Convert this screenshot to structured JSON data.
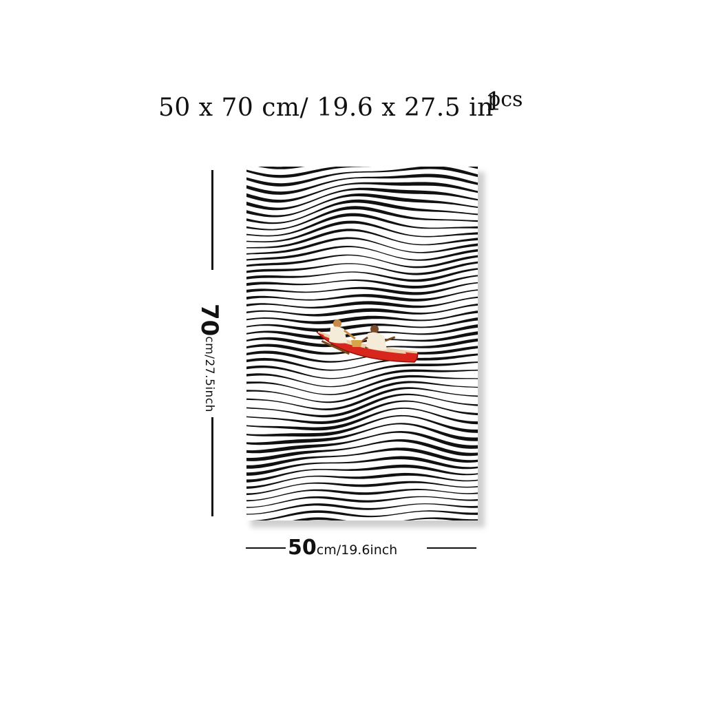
{
  "title": {
    "dimensions": "50 x 70 cm/ 19.6 x 27.5 in",
    "quantity_number": "1",
    "quantity_unit": "pcs"
  },
  "height_label": {
    "value": "70",
    "unit": "cm/27.5inch"
  },
  "width_label": {
    "value": "50",
    "unit": "cm/19.6inch"
  },
  "poster": {
    "stripe_color": "#111111",
    "background_color": "#ffffff",
    "boat_color": "#d9261c"
  }
}
